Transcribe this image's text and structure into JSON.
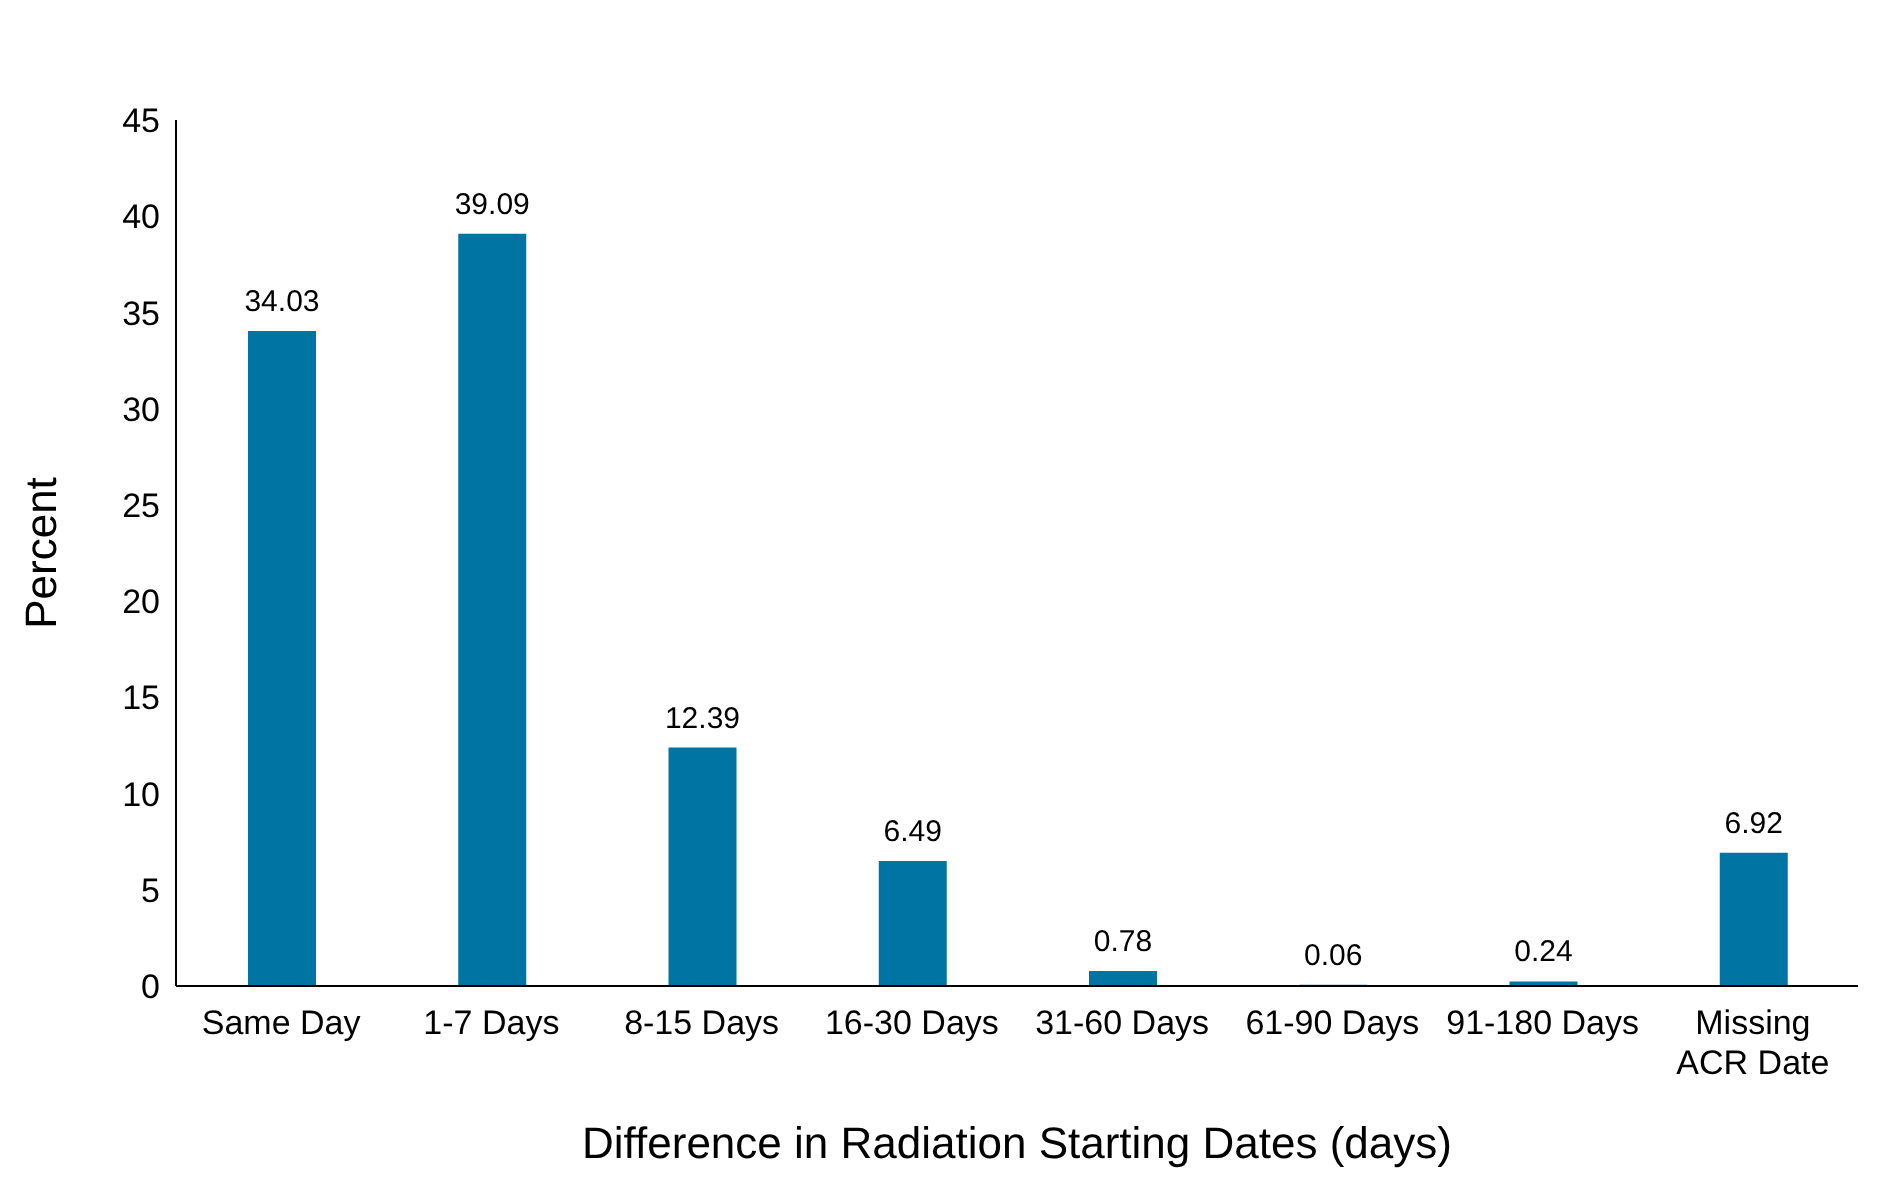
{
  "chart_data": {
    "type": "bar",
    "xlabel": "Difference in Radiation Starting Dates (days)",
    "ylabel": "Percent",
    "categories": [
      "Same Day",
      "1-7 Days",
      "8-15 Days",
      "16-30 Days",
      "31-60 Days",
      "61-90 Days",
      "91-180 Days",
      "Missing ACR Date"
    ],
    "values": [
      34.03,
      39.09,
      12.39,
      6.49,
      0.78,
      0.06,
      0.24,
      6.92
    ],
    "color": "#0075a3",
    "ylim": [
      0,
      45
    ],
    "yticks": [
      0,
      5,
      10,
      15,
      20,
      25,
      30,
      35,
      40,
      45
    ],
    "grid": false,
    "data_labels": true
  }
}
